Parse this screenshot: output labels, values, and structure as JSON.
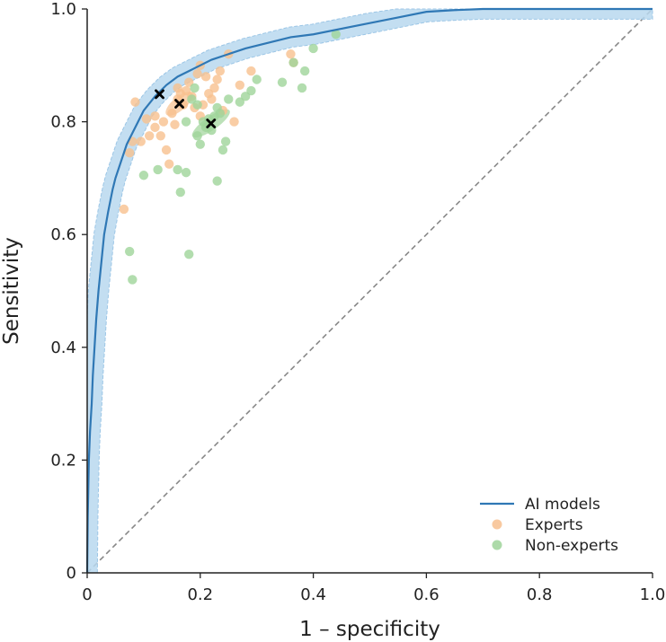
{
  "chart_data": {
    "type": "scatter",
    "title": "",
    "xlabel": "1 – specificity",
    "ylabel": "Sensitivity",
    "xlim": [
      0,
      1
    ],
    "ylim": [
      0,
      1
    ],
    "xticks": [
      "0",
      "0.2",
      "0.4",
      "0.6",
      "0.8",
      "1.0"
    ],
    "yticks": [
      "0",
      "0.2",
      "0.4",
      "0.6",
      "0.8",
      "1.0"
    ],
    "grid": false,
    "legend_position": "bottom-right",
    "diagonal_reference": true,
    "colors": {
      "ai_line": "#2f78b5",
      "ai_band": "#b9d8ef",
      "ai_band_edge": "#9cc6e6",
      "experts": "#f7c08f",
      "non_experts": "#9fd49a",
      "means": "#000000",
      "diagonal": "#888888"
    },
    "series": [
      {
        "name": "AI models",
        "kind": "line",
        "points": [
          [
            0,
            0
          ],
          [
            0.001,
            0.1
          ],
          [
            0.003,
            0.2
          ],
          [
            0.005,
            0.25
          ],
          [
            0.008,
            0.3
          ],
          [
            0.01,
            0.35
          ],
          [
            0.013,
            0.4
          ],
          [
            0.016,
            0.45
          ],
          [
            0.02,
            0.5
          ],
          [
            0.025,
            0.55
          ],
          [
            0.03,
            0.6
          ],
          [
            0.037,
            0.64
          ],
          [
            0.045,
            0.68
          ],
          [
            0.05,
            0.7
          ],
          [
            0.06,
            0.73
          ],
          [
            0.07,
            0.76
          ],
          [
            0.08,
            0.78
          ],
          [
            0.09,
            0.8
          ],
          [
            0.1,
            0.82
          ],
          [
            0.12,
            0.845
          ],
          [
            0.14,
            0.865
          ],
          [
            0.16,
            0.88
          ],
          [
            0.18,
            0.89
          ],
          [
            0.2,
            0.9
          ],
          [
            0.22,
            0.91
          ],
          [
            0.25,
            0.92
          ],
          [
            0.28,
            0.93
          ],
          [
            0.32,
            0.94
          ],
          [
            0.36,
            0.95
          ],
          [
            0.4,
            0.955
          ],
          [
            0.45,
            0.965
          ],
          [
            0.5,
            0.975
          ],
          [
            0.55,
            0.985
          ],
          [
            0.6,
            0.995
          ],
          [
            0.65,
            0.998
          ],
          [
            0.7,
            1.0
          ],
          [
            0.8,
            1.0
          ],
          [
            0.9,
            1.0
          ],
          [
            1.0,
            1.0
          ]
        ],
        "band_halfwidth": 0.018
      },
      {
        "name": "Experts",
        "kind": "scatter",
        "points": [
          [
            0.075,
            0.745
          ],
          [
            0.085,
            0.835
          ],
          [
            0.095,
            0.765
          ],
          [
            0.065,
            0.645
          ],
          [
            0.08,
            0.765
          ],
          [
            0.11,
            0.775
          ],
          [
            0.12,
            0.81
          ],
          [
            0.13,
            0.775
          ],
          [
            0.135,
            0.8
          ],
          [
            0.14,
            0.75
          ],
          [
            0.145,
            0.725
          ],
          [
            0.15,
            0.815
          ],
          [
            0.155,
            0.795
          ],
          [
            0.16,
            0.84
          ],
          [
            0.165,
            0.85
          ],
          [
            0.17,
            0.83
          ],
          [
            0.175,
            0.855
          ],
          [
            0.18,
            0.87
          ],
          [
            0.185,
            0.845
          ],
          [
            0.19,
            0.825
          ],
          [
            0.195,
            0.885
          ],
          [
            0.2,
            0.9
          ],
          [
            0.205,
            0.83
          ],
          [
            0.21,
            0.88
          ],
          [
            0.215,
            0.85
          ],
          [
            0.225,
            0.86
          ],
          [
            0.23,
            0.875
          ],
          [
            0.235,
            0.89
          ],
          [
            0.24,
            0.82
          ],
          [
            0.25,
            0.92
          ],
          [
            0.26,
            0.8
          ],
          [
            0.27,
            0.865
          ],
          [
            0.29,
            0.89
          ],
          [
            0.36,
            0.92
          ],
          [
            0.365,
            0.905
          ],
          [
            0.105,
            0.805
          ],
          [
            0.12,
            0.79
          ],
          [
            0.2,
            0.81
          ],
          [
            0.22,
            0.84
          ],
          [
            0.16,
            0.86
          ]
        ]
      },
      {
        "name": "Non-experts",
        "kind": "scatter",
        "points": [
          [
            0.075,
            0.57
          ],
          [
            0.08,
            0.52
          ],
          [
            0.1,
            0.705
          ],
          [
            0.125,
            0.715
          ],
          [
            0.16,
            0.715
          ],
          [
            0.165,
            0.675
          ],
          [
            0.175,
            0.71
          ],
          [
            0.18,
            0.565
          ],
          [
            0.185,
            0.84
          ],
          [
            0.19,
            0.86
          ],
          [
            0.195,
            0.775
          ],
          [
            0.2,
            0.76
          ],
          [
            0.205,
            0.8
          ],
          [
            0.21,
            0.79
          ],
          [
            0.215,
            0.805
          ],
          [
            0.22,
            0.785
          ],
          [
            0.225,
            0.81
          ],
          [
            0.23,
            0.825
          ],
          [
            0.235,
            0.815
          ],
          [
            0.24,
            0.75
          ],
          [
            0.245,
            0.765
          ],
          [
            0.23,
            0.695
          ],
          [
            0.27,
            0.835
          ],
          [
            0.28,
            0.845
          ],
          [
            0.29,
            0.855
          ],
          [
            0.3,
            0.875
          ],
          [
            0.345,
            0.87
          ],
          [
            0.365,
            0.905
          ],
          [
            0.38,
            0.86
          ],
          [
            0.385,
            0.89
          ],
          [
            0.4,
            0.93
          ],
          [
            0.44,
            0.955
          ],
          [
            0.195,
            0.83
          ],
          [
            0.25,
            0.84
          ],
          [
            0.175,
            0.8
          ]
        ]
      },
      {
        "name": "",
        "kind": "mean_markers",
        "points": [
          [
            0.128,
            0.849
          ],
          [
            0.163,
            0.832
          ],
          [
            0.219,
            0.797
          ]
        ]
      }
    ],
    "ellipses": [
      {
        "group": "Experts",
        "cx": 0.163,
        "cy": 0.832,
        "rx": 0.03,
        "ry": 0.012,
        "angle_deg": -40
      },
      {
        "group": "Non-experts",
        "cx": 0.219,
        "cy": 0.797,
        "rx": 0.04,
        "ry": 0.012,
        "angle_deg": -35
      }
    ],
    "legend": [
      {
        "label": "AI models",
        "kind": "line"
      },
      {
        "label": "Experts",
        "kind": "dot"
      },
      {
        "label": "Non-experts",
        "kind": "dot"
      }
    ]
  }
}
